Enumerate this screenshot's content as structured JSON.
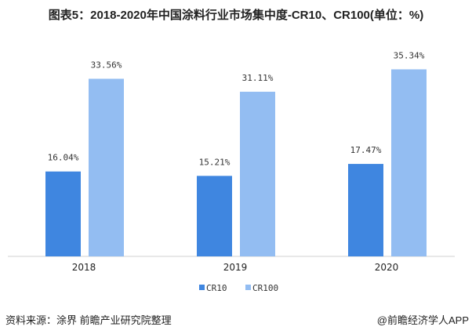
{
  "title": "图表5：2018-2020年中国涂料行业市场集中度-CR10、CR100(单位：%)",
  "source": "资料来源：涂界 前瞻产业研究院整理",
  "brand": "@前瞻经济学人APP",
  "chart_data": {
    "type": "bar",
    "title": "图表5：2018-2020年中国涂料行业市场集中度-CR10、CR100(单位：%)",
    "categories": [
      "2018",
      "2019",
      "2020"
    ],
    "series": [
      {
        "name": "CR10",
        "values": [
          16.04,
          15.21,
          17.47
        ],
        "labels": [
          "16.04%",
          "15.21%",
          "17.47%"
        ],
        "color": "#3f86e0"
      },
      {
        "name": "CR100",
        "values": [
          33.56,
          31.11,
          35.34
        ],
        "labels": [
          "33.56%",
          "31.11%",
          "35.34%"
        ],
        "color": "#93bdf2"
      }
    ],
    "ylim": [
      0,
      40
    ],
    "grid": false,
    "legend": "bottom"
  }
}
